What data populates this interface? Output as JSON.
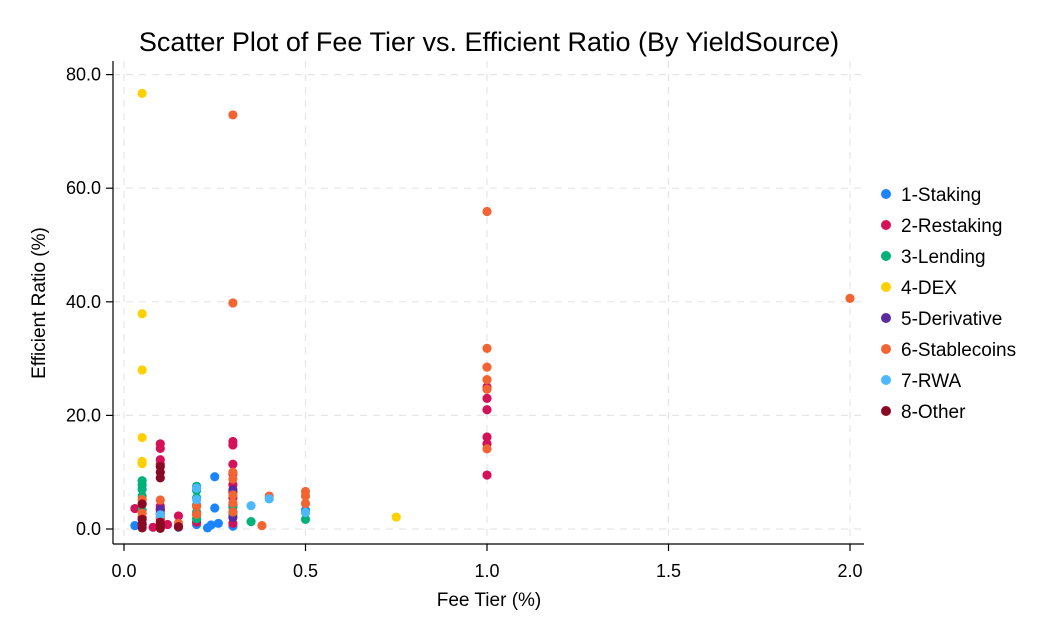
{
  "chart_data": {
    "type": "scatter",
    "title": "Scatter Plot of Fee Tier vs. Efficient Ratio (By YieldSource)",
    "xlabel": "Fee Tier (%)",
    "ylabel": "Efficient Ratio (%)",
    "xlim": [
      -0.02,
      2.04
    ],
    "ylim": [
      -3,
      82
    ],
    "xticks": [
      0.0,
      0.5,
      1.0,
      1.5,
      2.0
    ],
    "xtick_labels": [
      "0.0",
      "0.5",
      "1.0",
      "1.5",
      "2.0"
    ],
    "yticks": [
      0,
      20,
      40,
      60,
      80
    ],
    "ytick_labels": [
      "0.0",
      "20.0",
      "40.0",
      "60.0",
      "80.0"
    ],
    "grid": true,
    "legend_position": "right",
    "series": [
      {
        "name": "1-Staking",
        "color": "#1a85ff",
        "points": [
          [
            0.03,
            0.6
          ],
          [
            0.05,
            0.8
          ],
          [
            0.1,
            0.5
          ],
          [
            0.15,
            0.3
          ],
          [
            0.2,
            0.8
          ],
          [
            0.23,
            0.2
          ],
          [
            0.24,
            0.7
          ],
          [
            0.25,
            3.7
          ],
          [
            0.25,
            9.2
          ],
          [
            0.26,
            1.0
          ],
          [
            0.3,
            0.5
          ],
          [
            0.5,
            3.3
          ]
        ]
      },
      {
        "name": "2-Restaking",
        "color": "#d41159",
        "points": [
          [
            0.03,
            3.6
          ],
          [
            0.05,
            2.0
          ],
          [
            0.05,
            1.0
          ],
          [
            0.08,
            0.3
          ],
          [
            0.1,
            15.0
          ],
          [
            0.1,
            14.2
          ],
          [
            0.1,
            12.2
          ],
          [
            0.1,
            11.4
          ],
          [
            0.1,
            4.0
          ],
          [
            0.1,
            3.3
          ],
          [
            0.1,
            1.8
          ],
          [
            0.12,
            0.8
          ],
          [
            0.15,
            2.3
          ],
          [
            0.15,
            0.4
          ],
          [
            0.2,
            2.5
          ],
          [
            0.2,
            1.2
          ],
          [
            0.3,
            15.4
          ],
          [
            0.3,
            14.8
          ],
          [
            0.3,
            11.4
          ],
          [
            0.3,
            9.7
          ],
          [
            0.3,
            7.8
          ],
          [
            0.3,
            6.5
          ],
          [
            0.3,
            5.5
          ],
          [
            0.3,
            4.2
          ],
          [
            0.3,
            3.0
          ],
          [
            0.3,
            1.0
          ],
          [
            1.0,
            25.0
          ],
          [
            1.0,
            23.0
          ],
          [
            1.0,
            21.0
          ],
          [
            1.0,
            16.2
          ],
          [
            1.0,
            15.0
          ],
          [
            1.0,
            9.5
          ]
        ]
      },
      {
        "name": "3-Lending",
        "color": "#00b27a",
        "points": [
          [
            0.05,
            8.5
          ],
          [
            0.05,
            7.8
          ],
          [
            0.05,
            7.0
          ],
          [
            0.05,
            5.8
          ],
          [
            0.05,
            4.5
          ],
          [
            0.05,
            3.3
          ],
          [
            0.2,
            7.5
          ],
          [
            0.2,
            6.8
          ],
          [
            0.2,
            5.5
          ],
          [
            0.2,
            4.2
          ],
          [
            0.2,
            3.0
          ],
          [
            0.2,
            1.8
          ],
          [
            0.3,
            3.8
          ],
          [
            0.3,
            2.5
          ],
          [
            0.35,
            1.3
          ],
          [
            0.5,
            1.7
          ]
        ]
      },
      {
        "name": "4-DEX",
        "color": "#ffd000",
        "points": [
          [
            0.05,
            76.7
          ],
          [
            0.05,
            37.9
          ],
          [
            0.05,
            28.0
          ],
          [
            0.05,
            16.1
          ],
          [
            0.05,
            11.9
          ],
          [
            0.05,
            11.5
          ],
          [
            0.75,
            2.1
          ]
        ]
      },
      {
        "name": "5-Derivative",
        "color": "#5a2aa0",
        "points": [
          [
            0.1,
            3.5
          ],
          [
            0.1,
            2.7
          ],
          [
            0.3,
            6.9
          ],
          [
            0.3,
            2.0
          ]
        ]
      },
      {
        "name": "6-Stablecoins",
        "color": "#f26532",
        "points": [
          [
            0.05,
            5.2
          ],
          [
            0.05,
            2.8
          ],
          [
            0.1,
            5.1
          ],
          [
            0.1,
            2.2
          ],
          [
            0.15,
            1.0
          ],
          [
            0.2,
            4.0
          ],
          [
            0.2,
            2.6
          ],
          [
            0.3,
            72.9
          ],
          [
            0.3,
            39.8
          ],
          [
            0.3,
            10.0
          ],
          [
            0.3,
            8.8
          ],
          [
            0.3,
            6.0
          ],
          [
            0.3,
            4.6
          ],
          [
            0.3,
            3.0
          ],
          [
            0.38,
            0.6
          ],
          [
            0.4,
            5.8
          ],
          [
            0.5,
            6.6
          ],
          [
            0.5,
            5.8
          ],
          [
            0.5,
            4.5
          ],
          [
            1.0,
            55.9
          ],
          [
            1.0,
            31.8
          ],
          [
            1.0,
            28.5
          ],
          [
            1.0,
            26.3
          ],
          [
            1.0,
            24.6
          ],
          [
            1.0,
            14.1
          ],
          [
            2.0,
            40.6
          ]
        ]
      },
      {
        "name": "7-RWA",
        "color": "#4db8ff",
        "points": [
          [
            0.1,
            2.5
          ],
          [
            0.2,
            5.2
          ],
          [
            0.2,
            7.2
          ],
          [
            0.35,
            4.1
          ],
          [
            0.4,
            5.3
          ],
          [
            0.5,
            2.9
          ]
        ]
      },
      {
        "name": "8-Other",
        "color": "#8a0a23",
        "points": [
          [
            0.05,
            4.4
          ],
          [
            0.05,
            1.7
          ],
          [
            0.05,
            0.8
          ],
          [
            0.05,
            0.2
          ],
          [
            0.1,
            11.0
          ],
          [
            0.1,
            10.0
          ],
          [
            0.1,
            9.0
          ],
          [
            0.1,
            1.2
          ],
          [
            0.1,
            0.6
          ],
          [
            0.1,
            0.1
          ],
          [
            0.15,
            0.4
          ]
        ]
      }
    ]
  }
}
